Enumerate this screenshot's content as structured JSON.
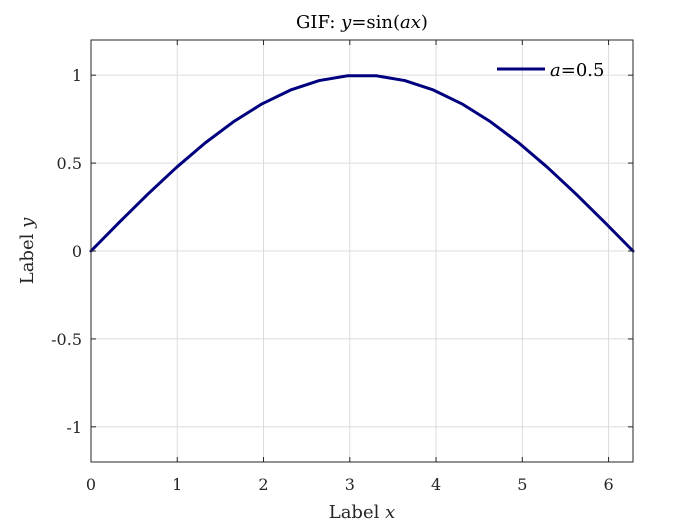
{
  "chart_data": {
    "type": "line",
    "title": {
      "prefix": "GIF: ",
      "var1": "y",
      "mid": "=sin(",
      "var2": "ax",
      "suffix": ")"
    },
    "xlabel": {
      "text": "Label ",
      "var": "x"
    },
    "ylabel": {
      "text": "Label ",
      "var": "y"
    },
    "xlim": [
      0,
      6.2832
    ],
    "ylim": [
      -1.2,
      1.2
    ],
    "xticks": [
      0,
      1,
      2,
      3,
      4,
      5,
      6
    ],
    "xtick_labels": [
      "0",
      "1",
      "2",
      "3",
      "4",
      "5",
      "6"
    ],
    "yticks": [
      -1,
      -0.5,
      0,
      0.5,
      1
    ],
    "ytick_labels": [
      "-1",
      "-0.5",
      "0",
      "0.5",
      "1"
    ],
    "grid": true,
    "legend_position": "top-right",
    "series": [
      {
        "legend": {
          "var": "a",
          "rest": "=0.5"
        },
        "color": "#00007f",
        "a": 0.5,
        "x": [
          0,
          0.3307,
          0.6614,
          0.992,
          1.3227,
          1.6534,
          1.9841,
          2.3148,
          2.6454,
          2.9761,
          3.3068,
          3.6375,
          3.9681,
          4.2988,
          4.6295,
          4.9602,
          5.2909,
          5.6215,
          5.9522,
          6.2832
        ],
        "y": [
          0,
          0.1646,
          0.3247,
          0.4759,
          0.6142,
          0.7357,
          0.8372,
          0.9158,
          0.9694,
          0.9966,
          0.9966,
          0.9694,
          0.9158,
          0.8372,
          0.7357,
          0.6142,
          0.4759,
          0.3247,
          0.1646,
          0
        ]
      }
    ]
  }
}
